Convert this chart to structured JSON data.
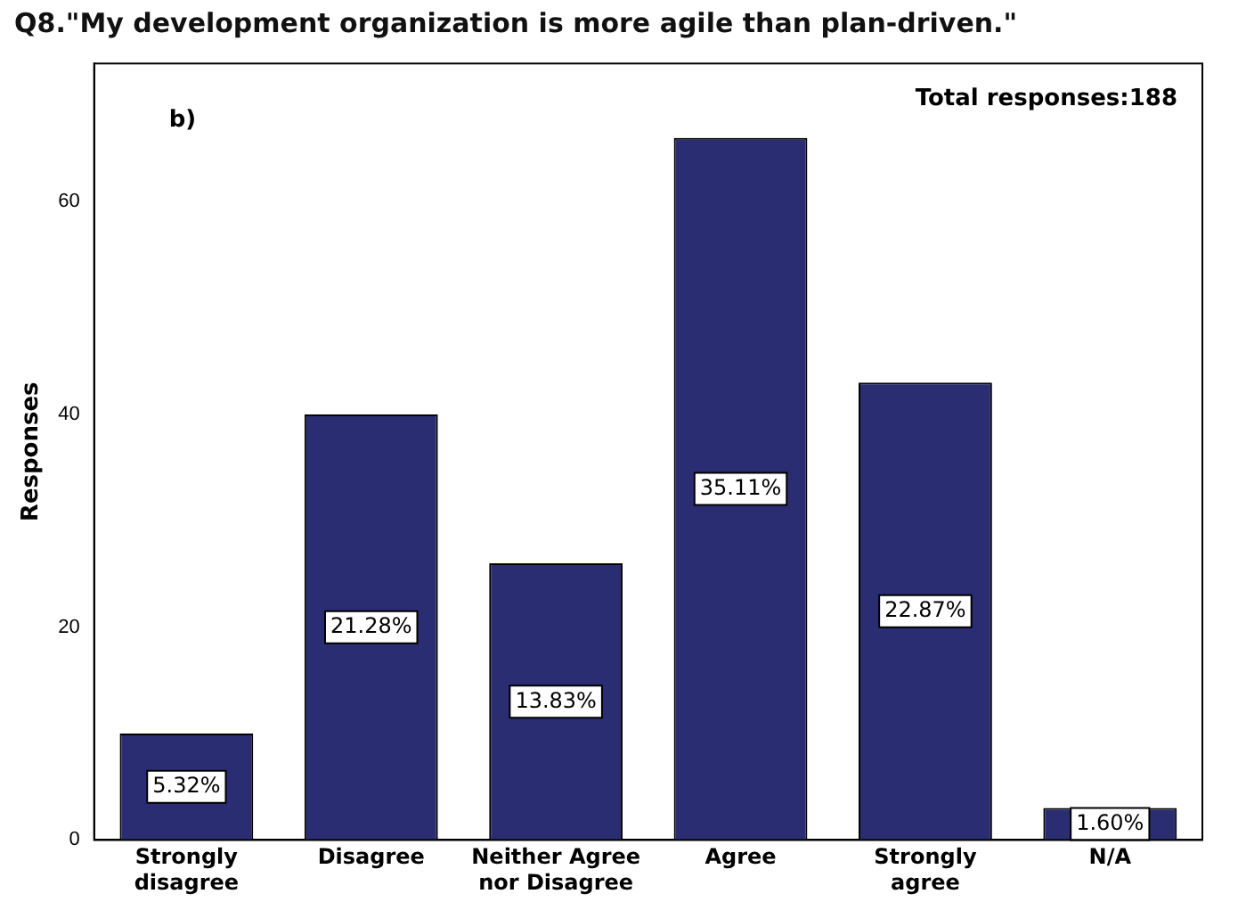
{
  "chart_data": {
    "type": "bar",
    "title": "Q8.\"My development organization is more agile than plan-driven.\"",
    "ylabel": "Responses",
    "categories": [
      "Strongly disagree",
      "Disagree",
      "Neither Agree nor Disagree",
      "Agree",
      "Strongly agree",
      "N/A"
    ],
    "values": [
      10,
      40,
      26,
      66,
      43,
      3
    ],
    "color": "#2b2d72",
    "ylim": [
      0,
      73
    ],
    "yticks": [
      0,
      20,
      40,
      60
    ],
    "grid": false,
    "legend": false,
    "annotations": [
      "Total responses:188",
      "b)",
      "5.32%",
      "21.28%",
      "13.83%",
      "35.11%",
      "22.87%",
      "1.60%"
    ]
  }
}
